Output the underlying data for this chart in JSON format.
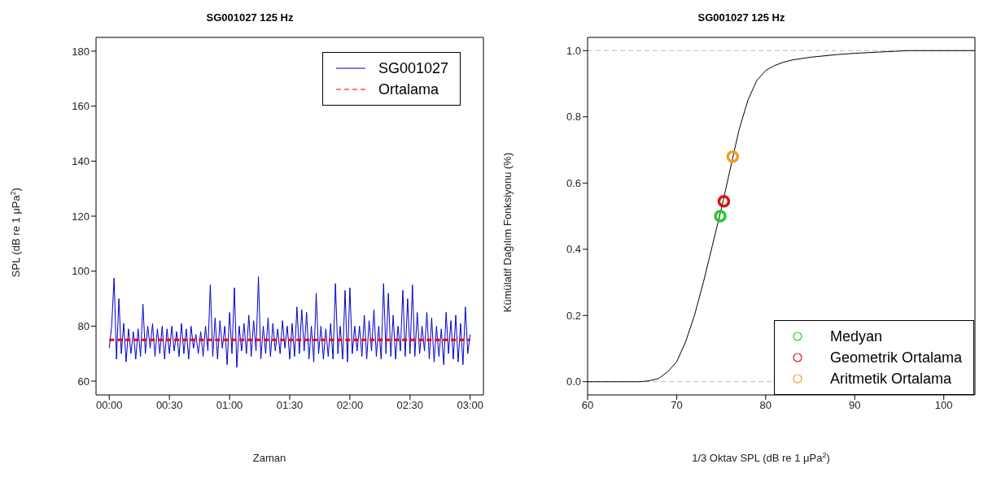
{
  "chart_data": [
    {
      "type": "line",
      "title": "SG001027 125 Hz",
      "xlabel": "Zaman",
      "ylabel": "SPL (dB re 1 μPa$^{2}$)",
      "xlim": [
        -0.11,
        3.11
      ],
      "ylim": [
        55,
        185
      ],
      "xticks": [
        {
          "value": 0,
          "label": "00:00"
        },
        {
          "value": 0.5,
          "label": "00:30"
        },
        {
          "value": 1,
          "label": "01:00"
        },
        {
          "value": 1.5,
          "label": "01:30"
        },
        {
          "value": 2,
          "label": "02:00"
        },
        {
          "value": 2.5,
          "label": "02:30"
        },
        {
          "value": 3,
          "label": "03:00"
        }
      ],
      "yticks": [
        60,
        80,
        100,
        120,
        140,
        160,
        180
      ],
      "grid": false,
      "legend": "top right",
      "series": [
        {
          "name": "SG001027",
          "color": "#0000cc",
          "x": [
            0,
            0.02,
            0.04,
            0.06,
            0.08,
            0.1,
            0.12,
            0.14,
            0.16,
            0.18,
            0.2,
            0.22,
            0.24,
            0.26,
            0.28,
            0.3,
            0.32,
            0.34,
            0.36,
            0.38,
            0.4,
            0.42,
            0.44,
            0.46,
            0.48,
            0.5,
            0.52,
            0.54,
            0.56,
            0.58,
            0.6,
            0.62,
            0.64,
            0.66,
            0.68,
            0.7,
            0.72,
            0.74,
            0.76,
            0.78,
            0.8,
            0.82,
            0.84,
            0.86,
            0.88,
            0.9,
            0.92,
            0.94,
            0.96,
            0.98,
            1,
            1.02,
            1.04,
            1.06,
            1.08,
            1.1,
            1.12,
            1.14,
            1.16,
            1.18,
            1.2,
            1.22,
            1.24,
            1.26,
            1.28,
            1.3,
            1.32,
            1.34,
            1.36,
            1.38,
            1.4,
            1.42,
            1.44,
            1.46,
            1.48,
            1.5,
            1.52,
            1.54,
            1.56,
            1.58,
            1.6,
            1.62,
            1.64,
            1.66,
            1.68,
            1.7,
            1.72,
            1.74,
            1.76,
            1.78,
            1.8,
            1.82,
            1.84,
            1.86,
            1.88,
            1.9,
            1.92,
            1.94,
            1.96,
            1.98,
            2,
            2.02,
            2.04,
            2.06,
            2.08,
            2.1,
            2.12,
            2.14,
            2.16,
            2.18,
            2.2,
            2.22,
            2.24,
            2.26,
            2.28,
            2.3,
            2.32,
            2.34,
            2.36,
            2.38,
            2.4,
            2.42,
            2.44,
            2.46,
            2.48,
            2.5,
            2.52,
            2.54,
            2.56,
            2.58,
            2.6,
            2.62,
            2.64,
            2.66,
            2.68,
            2.7,
            2.72,
            2.74,
            2.76,
            2.78,
            2.8,
            2.82,
            2.84,
            2.86,
            2.88,
            2.9,
            2.92,
            2.94,
            2.96,
            2.98,
            3
          ],
          "values": [
            72,
            80,
            97.5,
            68,
            90,
            70,
            81,
            67,
            79,
            70,
            78,
            68,
            79,
            69,
            88,
            70,
            80,
            72,
            81,
            69,
            79,
            70,
            80,
            68,
            79,
            70,
            80,
            71,
            78,
            69,
            81,
            70,
            79,
            68,
            80,
            72,
            77,
            70,
            78,
            69,
            80,
            71,
            95,
            69,
            83,
            68,
            82,
            72,
            80,
            66,
            85,
            70,
            94,
            65,
            80,
            71,
            81,
            70,
            84,
            69,
            82,
            71,
            98,
            68,
            80,
            70,
            83,
            69,
            81,
            71,
            79,
            70,
            82,
            72,
            80,
            68,
            81,
            69,
            87,
            70,
            86,
            71,
            85,
            68,
            80,
            67,
            92,
            70,
            80,
            68,
            79,
            69,
            81,
            68,
            95.5,
            70,
            80,
            68,
            93,
            67,
            94,
            70,
            80,
            71,
            80,
            69,
            84,
            68,
            82,
            71,
            86,
            69,
            80,
            68,
            95.5,
            70,
            92,
            69,
            84,
            68,
            80,
            71,
            93,
            69,
            90,
            70,
            95,
            69,
            85,
            70,
            80,
            71,
            85,
            68,
            83,
            67,
            80,
            69,
            79,
            66,
            85,
            70,
            82,
            68,
            84,
            67,
            81,
            66,
            87,
            70,
            77
          ]
        },
        {
          "name": "Ortalama",
          "color": "#ee0000",
          "line_style": "dashed",
          "x": [
            0,
            3
          ],
          "values": [
            75,
            75
          ]
        }
      ]
    },
    {
      "type": "line",
      "title": "SG001027 125 Hz",
      "xlabel": "1/3 Oktav SPL (dB re 1 μPa$^{2}$)",
      "ylabel": "Kümülatif Dağılım Fonksiyonu (%)",
      "xlim": [
        60,
        103.5
      ],
      "ylim": [
        -0.04,
        1.04
      ],
      "xticks": [
        60,
        70,
        80,
        90,
        100
      ],
      "yticks": [
        {
          "value": 0,
          "label": "0.0"
        },
        {
          "value": 0.2,
          "label": "0.2"
        },
        {
          "value": 0.4,
          "label": "0.4"
        },
        {
          "value": 0.6,
          "label": "0.6"
        },
        {
          "value": 0.8,
          "label": "0.8"
        },
        {
          "value": 1,
          "label": "1.0"
        }
      ],
      "grid": false,
      "legend": "bottom right",
      "ref_lines": [
        {
          "axis": "y",
          "value": 0,
          "color": "#bbbbbb",
          "line_style": "dashed"
        },
        {
          "axis": "y",
          "value": 1,
          "color": "#bbbbbb",
          "line_style": "dashed"
        }
      ],
      "series": [
        {
          "color": "#000000",
          "x": [
            60,
            66,
            67,
            68,
            69,
            70,
            71,
            72,
            73,
            74,
            75,
            76,
            77,
            78,
            79,
            80,
            81,
            82,
            83,
            85,
            88,
            90,
            93,
            96,
            103.5
          ],
          "values": [
            0,
            0,
            0.003,
            0.01,
            0.03,
            0.06,
            0.12,
            0.2,
            0.3,
            0.41,
            0.52,
            0.64,
            0.76,
            0.85,
            0.91,
            0.94,
            0.955,
            0.965,
            0.972,
            0.98,
            0.988,
            0.992,
            0.996,
            1,
            1
          ]
        },
        {
          "type": "scatter",
          "name": "Medyan",
          "color": "#22cc22",
          "marker": "circle",
          "x": [
            74.9
          ],
          "values": [
            0.5
          ]
        },
        {
          "type": "scatter",
          "name": "Geometrik Ortalama",
          "color": "#dd1111",
          "marker": "circle",
          "x": [
            75.3
          ],
          "values": [
            0.545
          ]
        },
        {
          "type": "scatter",
          "name": "Aritmetik Ortalama",
          "color": "#f0a020",
          "marker": "circle",
          "x": [
            76.3
          ],
          "values": [
            0.68
          ]
        }
      ]
    }
  ]
}
